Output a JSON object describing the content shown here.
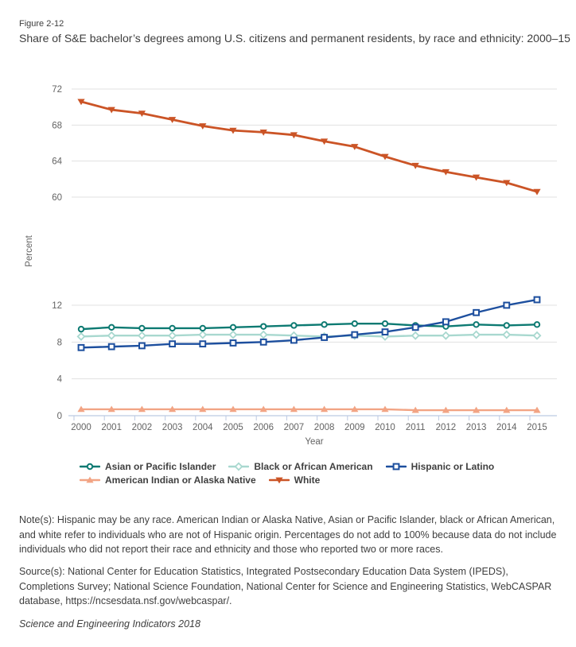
{
  "figure_label": "Figure 2-12",
  "title": "Share of S&E bachelor’s degrees among U.S. citizens and permanent residents, by race and ethnicity: 2000–15",
  "notes": "Note(s): Hispanic may be any race. American Indian or Alaska Native, Asian or Pacific Islander, black or African American, and white refer to individuals who are not of Hispanic origin. Percentages do not add to 100% because data do not include individuals who did not report their race and ethnicity and those who reported two or more races.",
  "source": "Source(s): National Center for Education Statistics, Integrated Postsecondary Education Data System (IPEDS), Completions Survey; National Science Foundation, National Center for Science and Engineering Statistics, WebCASPAR database, https://ncsesdata.nsf.gov/webcaspar/.",
  "attribution": "Science and Engineering Indicators 2018",
  "colors": {
    "gridline": "#e1e1e1",
    "axis_line": "#bcc9e2",
    "tick_text": "#636363",
    "teal": "#0d7a72",
    "light_teal": "#a8d8cf",
    "blue": "#1d4f9e",
    "salmon": "#f2a484",
    "orange_red": "#cb5426"
  },
  "chart_data": {
    "type": "line",
    "title": "Share of S&E bachelor’s degrees among U.S. citizens and permanent residents, by race and ethnicity: 2000–15",
    "xlabel": "Year",
    "ylabel": "Percent",
    "x": [
      2000,
      2001,
      2002,
      2003,
      2004,
      2005,
      2006,
      2007,
      2008,
      2009,
      2010,
      2011,
      2012,
      2013,
      2014,
      2015
    ],
    "axis": {
      "broken_axis": true,
      "top_segment_ticks": [
        72,
        68,
        64,
        60
      ],
      "bottom_segment_ticks": [
        12,
        8,
        4,
        0
      ],
      "grid": true
    },
    "legend_position": "bottom",
    "series": [
      {
        "id": "asian",
        "name": "Asian or Pacific Islander",
        "color_key": "teal",
        "marker": "circle",
        "marker_fill": "open",
        "axis_segment": "bottom",
        "values": [
          9.4,
          9.6,
          9.5,
          9.5,
          9.5,
          9.6,
          9.7,
          9.8,
          9.9,
          10.0,
          10.0,
          9.8,
          9.7,
          9.9,
          9.8,
          9.9
        ]
      },
      {
        "id": "black",
        "name": "Black or African American",
        "color_key": "light_teal",
        "marker": "diamond",
        "marker_fill": "open",
        "axis_segment": "bottom",
        "values": [
          8.6,
          8.7,
          8.7,
          8.7,
          8.8,
          8.8,
          8.8,
          8.7,
          8.6,
          8.7,
          8.6,
          8.7,
          8.7,
          8.8,
          8.8,
          8.7
        ]
      },
      {
        "id": "hispanic",
        "name": "Hispanic or Latino",
        "color_key": "blue",
        "marker": "square",
        "marker_fill": "open",
        "axis_segment": "bottom",
        "values": [
          7.4,
          7.5,
          7.6,
          7.8,
          7.8,
          7.9,
          8.0,
          8.2,
          8.5,
          8.8,
          9.1,
          9.6,
          10.2,
          11.2,
          12.0,
          12.6
        ]
      },
      {
        "id": "aian",
        "name": "American Indian or Alaska Native",
        "color_key": "salmon",
        "marker": "triangle-up",
        "marker_fill": "solid",
        "axis_segment": "bottom",
        "values": [
          0.7,
          0.7,
          0.7,
          0.7,
          0.7,
          0.7,
          0.7,
          0.7,
          0.7,
          0.7,
          0.7,
          0.6,
          0.6,
          0.6,
          0.6,
          0.6
        ]
      },
      {
        "id": "white",
        "name": "White",
        "color_key": "orange_red",
        "marker": "triangle-down",
        "marker_fill": "solid",
        "axis_segment": "top",
        "values": [
          70.6,
          69.7,
          69.3,
          68.6,
          67.9,
          67.4,
          67.2,
          66.9,
          66.2,
          65.6,
          64.5,
          63.5,
          62.8,
          62.2,
          61.6,
          60.6
        ]
      }
    ]
  }
}
